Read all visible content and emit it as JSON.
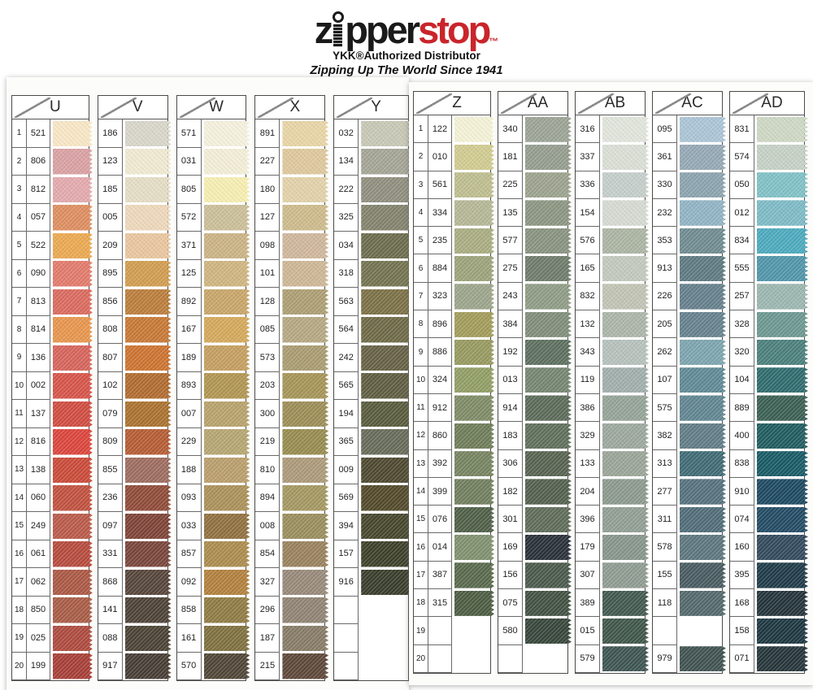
{
  "header": {
    "logo_pre": "z",
    "logo_mid": "pper",
    "logo_accent": "stop",
    "logo_tm": "™",
    "distributor_line": "YKK®Authorized Distributor",
    "tagline": "Zipping Up The World Since 1941",
    "brand_red": "#c9252b"
  },
  "panels": [
    {
      "name": "left",
      "columns": [
        {
          "letter": "U",
          "numbered": true,
          "rows": [
            [
              "1",
              "521",
              "#f7e6c5"
            ],
            [
              "2",
              "806",
              "#d9a0a2"
            ],
            [
              "3",
              "812",
              "#e2a9ad"
            ],
            [
              "4",
              "057",
              "#dd8d60"
            ],
            [
              "5",
              "522",
              "#eaa850"
            ],
            [
              "6",
              "090",
              "#e17a6b"
            ],
            [
              "7",
              "813",
              "#d96a5f"
            ],
            [
              "8",
              "814",
              "#e6954d"
            ],
            [
              "9",
              "136",
              "#d5645b"
            ],
            [
              "10",
              "002",
              "#d5544a"
            ],
            [
              "11",
              "137",
              "#cf4c41"
            ],
            [
              "12",
              "816",
              "#da453c"
            ],
            [
              "13",
              "138",
              "#c94a39"
            ],
            [
              "14",
              "060",
              "#c0513f"
            ],
            [
              "15",
              "249",
              "#b95a4a"
            ],
            [
              "16",
              "061",
              "#b54b3d"
            ],
            [
              "17",
              "062",
              "#aa5844"
            ],
            [
              "18",
              "850",
              "#a85c46"
            ],
            [
              "19",
              "025",
              "#ad4a3e"
            ],
            [
              "20",
              "199",
              "#a63f37"
            ]
          ]
        },
        {
          "letter": "V",
          "numbered": false,
          "rows": [
            [
              "186",
              "#d8d5c9"
            ],
            [
              "123",
              "#efe9d1"
            ],
            [
              "185",
              "#e4dcc4"
            ],
            [
              "005",
              "#edd7ba"
            ],
            [
              "209",
              "#e8c59e"
            ],
            [
              "895",
              "#d09c4f"
            ],
            [
              "856",
              "#ba7d3b"
            ],
            [
              "808",
              "#c67835"
            ],
            [
              "807",
              "#cc7330"
            ],
            [
              "102",
              "#b06b2f"
            ],
            [
              "079",
              "#aa712f"
            ],
            [
              "809",
              "#b45c34"
            ],
            [
              "855",
              "#9d6c5f"
            ],
            [
              "236",
              "#8f4b39"
            ],
            [
              "097",
              "#7e4337"
            ],
            [
              "331",
              "#78453b"
            ],
            [
              "868",
              "#56453a"
            ],
            [
              "141",
              "#4d4237"
            ],
            [
              "088",
              "#4b4235"
            ],
            [
              "917",
              "#473d35"
            ]
          ]
        },
        {
          "letter": "W",
          "numbered": false,
          "rows": [
            [
              "571",
              "#f4f0dd"
            ],
            [
              "031",
              "#f2edd6"
            ],
            [
              "805",
              "#f5edb0"
            ],
            [
              "572",
              "#cabe98"
            ],
            [
              "371",
              "#cab284"
            ],
            [
              "125",
              "#ceb47f"
            ],
            [
              "892",
              "#c7a569"
            ],
            [
              "167",
              "#d3a85a"
            ],
            [
              "189",
              "#c39e5f"
            ],
            [
              "893",
              "#b09551"
            ],
            [
              "007",
              "#b7a16b"
            ],
            [
              "229",
              "#b4a571"
            ],
            [
              "188",
              "#b99e6c"
            ],
            [
              "093",
              "#aa9059"
            ],
            [
              "033",
              "#907040"
            ],
            [
              "857",
              "#aa8b4d"
            ],
            [
              "092",
              "#b1803d"
            ],
            [
              "858",
              "#8e7b43"
            ],
            [
              "161",
              "#7e703f"
            ],
            [
              "570",
              "#504637"
            ]
          ]
        },
        {
          "letter": "X",
          "numbered": false,
          "rows": [
            [
              "891",
              "#e7d4a5"
            ],
            [
              "227",
              "#ddc79c"
            ],
            [
              "180",
              "#e1d1a9"
            ],
            [
              "127",
              "#ccba8b"
            ],
            [
              "098",
              "#ceb69b"
            ],
            [
              "101",
              "#ccb695"
            ],
            [
              "128",
              "#ac9e73"
            ],
            [
              "085",
              "#b4a782"
            ],
            [
              "573",
              "#a99b71"
            ],
            [
              "203",
              "#a49457"
            ],
            [
              "300",
              "#9b8d56"
            ],
            [
              "219",
              "#968b4f"
            ],
            [
              "810",
              "#ab9979"
            ],
            [
              "894",
              "#a39761"
            ],
            [
              "008",
              "#998d5d"
            ],
            [
              "854",
              "#98815d"
            ],
            [
              "327",
              "#978979"
            ],
            [
              "296",
              "#8f8373"
            ],
            [
              "187",
              "#867b67"
            ],
            [
              "215",
              "#5e4739"
            ]
          ]
        },
        {
          "letter": "Y",
          "numbered": false,
          "rows": [
            [
              "032",
              "#c7c7b5"
            ],
            [
              "134",
              "#a4a495"
            ],
            [
              "222",
              "#8f8e7e"
            ],
            [
              "325",
              "#82826d"
            ],
            [
              "034",
              "#6c6c4d"
            ],
            [
              "318",
              "#737350"
            ],
            [
              "563",
              "#7b7046"
            ],
            [
              "564",
              "#6e6946"
            ],
            [
              "242",
              "#666145"
            ],
            [
              "565",
              "#5f5d41"
            ],
            [
              "194",
              "#585b3c"
            ],
            [
              "365",
              "#676b59"
            ],
            [
              "009",
              "#4d482f"
            ],
            [
              "569",
              "#52492a"
            ],
            [
              "394",
              "#46462d"
            ],
            [
              "157",
              "#3d4029"
            ],
            [
              "916",
              "#393d2b"
            ],
            [
              "",
              ""
            ],
            [
              "",
              ""
            ],
            [
              "",
              ""
            ]
          ]
        }
      ]
    },
    {
      "name": "right",
      "columns": [
        {
          "letter": "Z",
          "numbered": true,
          "rows": [
            [
              "1",
              "122",
              "#f3f1d5"
            ],
            [
              "2",
              "010",
              "#d0ca90"
            ],
            [
              "3",
              "561",
              "#bdbd8f"
            ],
            [
              "4",
              "334",
              "#b4b795"
            ],
            [
              "5",
              "235",
              "#a9ac81"
            ],
            [
              "6",
              "884",
              "#9ba27a"
            ],
            [
              "7",
              "323",
              "#9ba48a"
            ],
            [
              "8",
              "896",
              "#a19b5a"
            ],
            [
              "9",
              "886",
              "#96995f"
            ],
            [
              "10",
              "324",
              "#909d65"
            ],
            [
              "11",
              "912",
              "#7e8b66"
            ],
            [
              "12",
              "860",
              "#6f7c59"
            ],
            [
              "13",
              "392",
              "#768360"
            ],
            [
              "14",
              "399",
              "#717e5d"
            ],
            [
              "15",
              "076",
              "#4f5f47"
            ],
            [
              "16",
              "014",
              "#7f906f"
            ],
            [
              "17",
              "387",
              "#59694c"
            ],
            [
              "18",
              "315",
              "#4c5c42"
            ],
            [
              "19",
              "",
              ""
            ],
            [
              "20",
              "",
              ""
            ]
          ]
        },
        {
          "letter": "AA",
          "numbered": false,
          "rows": [
            [
              "340",
              "#9ba395"
            ],
            [
              "181",
              "#949c8e"
            ],
            [
              "225",
              "#9ba28d"
            ],
            [
              "135",
              "#8b9581"
            ],
            [
              "577",
              "#88927f"
            ],
            [
              "275",
              "#6e7b6b"
            ],
            [
              "243",
              "#8e9b85"
            ],
            [
              "384",
              "#808d79"
            ],
            [
              "192",
              "#5d6f5f"
            ],
            [
              "013",
              "#748570"
            ],
            [
              "914",
              "#5b6b59"
            ],
            [
              "183",
              "#5f6f5b"
            ],
            [
              "306",
              "#576351"
            ],
            [
              "182",
              "#53604e"
            ],
            [
              "301",
              "#5f6c59"
            ],
            [
              "169",
              "#2b3139"
            ],
            [
              "156",
              "#4a594b"
            ],
            [
              "075",
              "#425143"
            ],
            [
              "580",
              "#37463b"
            ],
            [
              "",
              ""
            ]
          ]
        },
        {
          "letter": "AB",
          "numbered": false,
          "rows": [
            [
              "316",
              "#e0e4db"
            ],
            [
              "337",
              "#d9ded5"
            ],
            [
              "336",
              "#c4cdc9"
            ],
            [
              "154",
              "#d4d9d1"
            ],
            [
              "576",
              "#abb4a3"
            ],
            [
              "165",
              "#c1c8bd"
            ],
            [
              "832",
              "#c0c3b3"
            ],
            [
              "132",
              "#abb4a9"
            ],
            [
              "343",
              "#b5c0bb"
            ],
            [
              "119",
              "#a0aeab"
            ],
            [
              "386",
              "#94a397"
            ],
            [
              "329",
              "#9ba79d"
            ],
            [
              "133",
              "#9aa497"
            ],
            [
              "204",
              "#8b998d"
            ],
            [
              "396",
              "#909e93"
            ],
            [
              "179",
              "#86958b"
            ],
            [
              "307",
              "#8e9b91"
            ],
            [
              "389",
              "#42594f"
            ],
            [
              "015",
              "#40564a"
            ],
            [
              "579",
              "#3e5551"
            ]
          ]
        },
        {
          "letter": "AC",
          "numbered": false,
          "rows": [
            [
              "095",
              "#aac4d5"
            ],
            [
              "361",
              "#94a8b4"
            ],
            [
              "330",
              "#8ba3ae"
            ],
            [
              "232",
              "#90b3c3"
            ],
            [
              "353",
              "#6f8b90"
            ],
            [
              "913",
              "#5e7981"
            ],
            [
              "226",
              "#657f8b"
            ],
            [
              "205",
              "#65818d"
            ],
            [
              "262",
              "#7ca4ae"
            ],
            [
              "107",
              "#5f8995"
            ],
            [
              "575",
              "#608591"
            ],
            [
              "382",
              "#617c86"
            ],
            [
              "313",
              "#406b75"
            ],
            [
              "277",
              "#55717d"
            ],
            [
              "311",
              "#506c78"
            ],
            [
              "578",
              "#5c767d"
            ],
            [
              "155",
              "#485b61"
            ],
            [
              "118",
              "#53696c"
            ],
            [
              "",
              ""
            ],
            [
              "979",
              "#405351"
            ]
          ]
        },
        {
          "letter": "AD",
          "numbered": false,
          "rows": [
            [
              "831",
              "#cdd7c3"
            ],
            [
              "574",
              "#c5d0c5"
            ],
            [
              "050",
              "#80c0c5"
            ],
            [
              "012",
              "#7dbac5"
            ],
            [
              "834",
              "#4ca9bd"
            ],
            [
              "555",
              "#5095a9"
            ],
            [
              "257",
              "#9bb6af"
            ],
            [
              "328",
              "#6c9790"
            ],
            [
              "320",
              "#4b7f7b"
            ],
            [
              "104",
              "#2f6b6d"
            ],
            [
              "889",
              "#3b5f53"
            ],
            [
              "400",
              "#205c5f"
            ],
            [
              "838",
              "#185a65"
            ],
            [
              "910",
              "#1e4961"
            ],
            [
              "074",
              "#234b64"
            ],
            [
              "160",
              "#334a5d"
            ],
            [
              "395",
              "#1f3b48"
            ],
            [
              "168",
              "#24343b"
            ],
            [
              "158",
              "#1e3741"
            ],
            [
              "071",
              "#253539"
            ]
          ]
        }
      ]
    }
  ]
}
